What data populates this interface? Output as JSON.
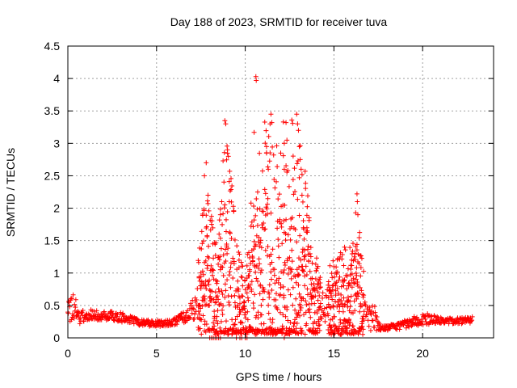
{
  "chart_data": {
    "type": "scatter",
    "title": "Day 188 of 2023, SRMTID for receiver tuva",
    "xlabel": "GPS time / hours",
    "ylabel": "SRMTID / TECUs",
    "xlim": [
      0,
      24
    ],
    "ylim": [
      0,
      4.5
    ],
    "xticks": [
      0,
      5,
      10,
      15,
      20
    ],
    "xtick_labels": [
      "0",
      "5",
      "10",
      "15",
      "20"
    ],
    "yticks": [
      0,
      0.5,
      1,
      1.5,
      2,
      2.5,
      3,
      3.5,
      4,
      4.5
    ],
    "ytick_labels": [
      "0",
      "0.5",
      "1",
      "1.5",
      "2",
      "2.5",
      "3",
      "3.5",
      "4",
      "4.5"
    ],
    "grid": true,
    "marker": "+",
    "series": [
      {
        "name": "SRMTID",
        "color": "#ff0000",
        "x_range": [
          0.0,
          22.8
        ],
        "profile": [
          {
            "x": 0.0,
            "base": 0.35,
            "spread": 0.45
          },
          {
            "x": 0.3,
            "base": 0.55,
            "spread": 0.5
          },
          {
            "x": 0.6,
            "base": 0.3,
            "spread": 0.2
          },
          {
            "x": 1.0,
            "base": 0.35,
            "spread": 0.18
          },
          {
            "x": 2.0,
            "base": 0.35,
            "spread": 0.15
          },
          {
            "x": 3.0,
            "base": 0.32,
            "spread": 0.15
          },
          {
            "x": 4.0,
            "base": 0.24,
            "spread": 0.1
          },
          {
            "x": 5.0,
            "base": 0.22,
            "spread": 0.1
          },
          {
            "x": 6.0,
            "base": 0.25,
            "spread": 0.12
          },
          {
            "x": 6.8,
            "base": 0.35,
            "spread": 0.2
          },
          {
            "x": 7.3,
            "base": 0.55,
            "spread": 0.5
          },
          {
            "x": 7.8,
            "base": 0.9,
            "spread": 1.6
          },
          {
            "x": 8.3,
            "base": 0.5,
            "spread": 1.0
          },
          {
            "x": 8.9,
            "base": 1.0,
            "spread": 2.3
          },
          {
            "x": 9.5,
            "base": 0.5,
            "spread": 1.2
          },
          {
            "x": 10.0,
            "base": 0.3,
            "spread": 0.6
          },
          {
            "x": 10.6,
            "base": 0.9,
            "spread": 2.2
          },
          {
            "x": 11.2,
            "base": 1.0,
            "spread": 2.4
          },
          {
            "x": 11.8,
            "base": 1.0,
            "spread": 2.0
          },
          {
            "x": 12.3,
            "base": 0.9,
            "spread": 2.4
          },
          {
            "x": 12.8,
            "base": 1.1,
            "spread": 2.3
          },
          {
            "x": 13.3,
            "base": 1.3,
            "spread": 1.6
          },
          {
            "x": 13.8,
            "base": 0.6,
            "spread": 0.8
          },
          {
            "x": 14.5,
            "base": 0.45,
            "spread": 0.5
          },
          {
            "x": 15.0,
            "base": 0.5,
            "spread": 0.8
          },
          {
            "x": 15.8,
            "base": 0.5,
            "spread": 0.9
          },
          {
            "x": 16.3,
            "base": 0.8,
            "spread": 1.4
          },
          {
            "x": 16.8,
            "base": 0.3,
            "spread": 0.35
          },
          {
            "x": 17.3,
            "base": 0.3,
            "spread": 0.4
          },
          {
            "x": 17.6,
            "base": 0.15,
            "spread": 0.08
          },
          {
            "x": 18.5,
            "base": 0.17,
            "spread": 0.1
          },
          {
            "x": 19.5,
            "base": 0.25,
            "spread": 0.15
          },
          {
            "x": 20.0,
            "base": 0.3,
            "spread": 0.2
          },
          {
            "x": 21.0,
            "base": 0.27,
            "spread": 0.1
          },
          {
            "x": 22.0,
            "base": 0.26,
            "spread": 0.1
          },
          {
            "x": 22.8,
            "base": 0.28,
            "spread": 0.1
          }
        ],
        "peaks": [
          {
            "x": 7.7,
            "y": 2.5
          },
          {
            "x": 7.8,
            "y": 2.7
          },
          {
            "x": 7.9,
            "y": 2.2
          },
          {
            "x": 8.85,
            "y": 3.35
          },
          {
            "x": 8.9,
            "y": 3.3
          },
          {
            "x": 9.0,
            "y": 2.9
          },
          {
            "x": 9.05,
            "y": 2.8
          },
          {
            "x": 9.1,
            "y": 2.1
          },
          {
            "x": 8.6,
            "y": 1.9
          },
          {
            "x": 10.6,
            "y": 4.03
          },
          {
            "x": 10.62,
            "y": 3.97
          },
          {
            "x": 10.5,
            "y": 3.17
          },
          {
            "x": 10.7,
            "y": 2.25
          },
          {
            "x": 11.45,
            "y": 3.45
          },
          {
            "x": 11.4,
            "y": 3.3
          },
          {
            "x": 11.5,
            "y": 3.32
          },
          {
            "x": 11.2,
            "y": 2.95
          },
          {
            "x": 11.3,
            "y": 2.6
          },
          {
            "x": 12.15,
            "y": 3.33
          },
          {
            "x": 12.3,
            "y": 3.32
          },
          {
            "x": 12.35,
            "y": 3.05
          },
          {
            "x": 12.0,
            "y": 2.85
          },
          {
            "x": 12.2,
            "y": 2.6
          },
          {
            "x": 12.9,
            "y": 3.45
          },
          {
            "x": 12.95,
            "y": 3.3
          },
          {
            "x": 13.0,
            "y": 3.2
          },
          {
            "x": 13.05,
            "y": 2.95
          },
          {
            "x": 13.1,
            "y": 2.75
          },
          {
            "x": 13.15,
            "y": 2.6
          },
          {
            "x": 13.2,
            "y": 2.2
          },
          {
            "x": 16.3,
            "y": 2.22
          },
          {
            "x": 16.32,
            "y": 2.1
          },
          {
            "x": 16.35,
            "y": 1.9
          },
          {
            "x": 15.6,
            "y": 1.4
          },
          {
            "x": 16.0,
            "y": 1.2
          },
          {
            "x": 13.5,
            "y": 1.65
          }
        ],
        "zeros": [
          8.0,
          8.1,
          8.2,
          8.3,
          8.4,
          8.5,
          8.6,
          9.5,
          9.7,
          9.8,
          10.0,
          10.1,
          12.2
        ]
      }
    ]
  }
}
